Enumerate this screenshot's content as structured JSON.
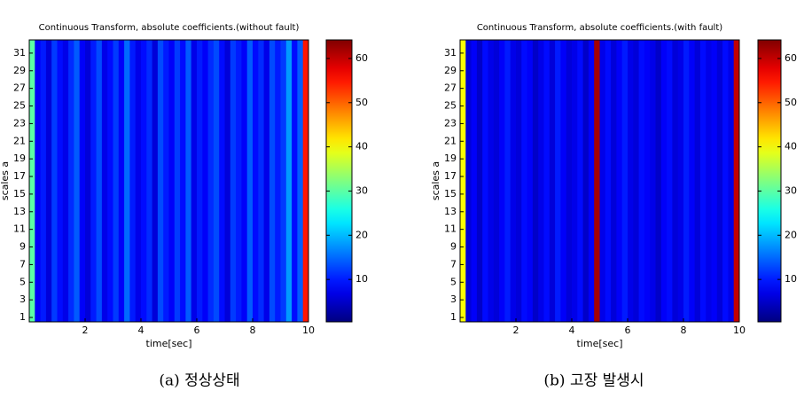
{
  "chart_data": [
    {
      "type": "heatmap",
      "title": "Continuous Transform, absolute coefficients.(without fault)",
      "x_label": "time[sec]",
      "y_label": "scales a",
      "caption": "(a) 정상상태",
      "x": [
        0.1,
        0.3,
        0.5,
        0.7,
        0.9,
        1.1,
        1.3,
        1.5,
        1.7,
        1.9,
        2.1,
        2.3,
        2.5,
        2.7,
        2.9,
        3.1,
        3.3,
        3.5,
        3.7,
        3.9,
        4.1,
        4.3,
        4.5,
        4.7,
        4.9,
        5.1,
        5.3,
        5.5,
        5.7,
        5.9,
        6.1,
        6.3,
        6.5,
        6.7,
        6.9,
        7.1,
        7.3,
        7.5,
        7.7,
        7.9,
        8.1,
        8.3,
        8.5,
        8.7,
        8.9,
        9.1,
        9.3,
        9.5,
        9.7,
        9.9
      ],
      "values": [
        30,
        8,
        10,
        6,
        12,
        9,
        7,
        11,
        14,
        8,
        6,
        10,
        13,
        7,
        9,
        12,
        8,
        15,
        10,
        7,
        9,
        11,
        6,
        13,
        10,
        8,
        12,
        9,
        14,
        7,
        10,
        8,
        11,
        13,
        9,
        6,
        12,
        10,
        8,
        14,
        9,
        11,
        7,
        13,
        10,
        12,
        18,
        9,
        14,
        55
      ],
      "xlim": [
        0,
        10
      ],
      "xticks": [
        2,
        4,
        6,
        8,
        10
      ],
      "ylim": [
        0.5,
        32.5
      ],
      "yticks": [
        1,
        3,
        5,
        7,
        9,
        11,
        13,
        15,
        17,
        19,
        21,
        23,
        25,
        27,
        29,
        31
      ],
      "clim": [
        0.4,
        64.2
      ],
      "cticks": [
        10,
        20,
        30,
        40,
        50,
        60
      ],
      "colormap": "jet"
    },
    {
      "type": "heatmap",
      "title": "Continuous Transform, absolute coefficients.(with fault)",
      "x_label": "time[sec]",
      "y_label": "scales a",
      "caption": "(b) 고장 발생시",
      "x": [
        0.1,
        0.3,
        0.5,
        0.7,
        0.9,
        1.1,
        1.3,
        1.5,
        1.7,
        1.9,
        2.1,
        2.3,
        2.5,
        2.7,
        2.9,
        3.1,
        3.3,
        3.5,
        3.7,
        3.9,
        4.1,
        4.3,
        4.5,
        4.7,
        4.9,
        5.1,
        5.3,
        5.5,
        5.7,
        5.9,
        6.1,
        6.3,
        6.5,
        6.7,
        6.9,
        7.1,
        7.3,
        7.5,
        7.7,
        7.9,
        8.1,
        8.3,
        8.5,
        8.7,
        8.9,
        9.1,
        9.3,
        9.5,
        9.7,
        9.9
      ],
      "values": [
        40,
        6,
        8,
        5,
        9,
        7,
        6,
        8,
        10,
        7,
        6,
        9,
        8,
        5,
        7,
        9,
        6,
        10,
        8,
        6,
        7,
        9,
        5,
        8,
        62,
        7,
        9,
        6,
        8,
        10,
        7,
        6,
        9,
        8,
        7,
        5,
        8,
        9,
        6,
        7,
        10,
        8,
        6,
        9,
        7,
        8,
        6,
        9,
        7,
        60
      ],
      "xlim": [
        0,
        10
      ],
      "xticks": [
        2,
        4,
        6,
        8,
        10
      ],
      "ylim": [
        0.5,
        32.5
      ],
      "yticks": [
        1,
        3,
        5,
        7,
        9,
        11,
        13,
        15,
        17,
        19,
        21,
        23,
        25,
        27,
        29,
        31
      ],
      "clim": [
        0.4,
        64.2
      ],
      "cticks": [
        10,
        20,
        30,
        40,
        50,
        60
      ],
      "colormap": "jet"
    }
  ]
}
